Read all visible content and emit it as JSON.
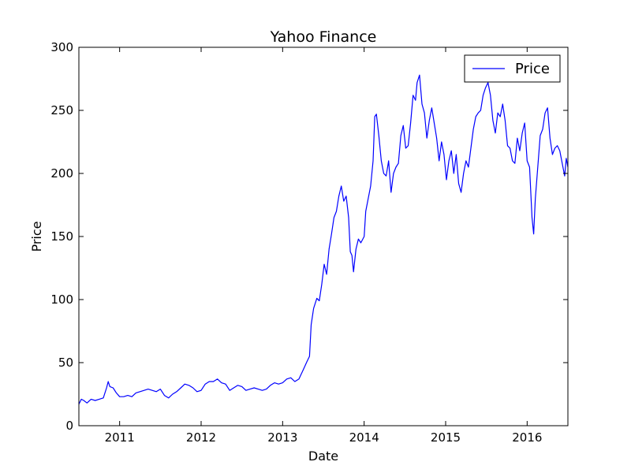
{
  "chart_data": {
    "type": "line",
    "title": "Yahoo Finance",
    "xlabel": "Date",
    "ylabel": "Price",
    "xlim": [
      2010.5,
      2016.5
    ],
    "ylim": [
      0,
      300
    ],
    "x_ticks": [
      2011,
      2012,
      2013,
      2014,
      2015,
      2016
    ],
    "x_tick_labels": [
      "2011",
      "2012",
      "2013",
      "2014",
      "2015",
      "2016"
    ],
    "y_ticks": [
      0,
      50,
      100,
      150,
      200,
      250,
      300
    ],
    "y_tick_labels": [
      "0",
      "50",
      "100",
      "150",
      "200",
      "250",
      "300"
    ],
    "grid": false,
    "legend_position": "top-right",
    "series": [
      {
        "name": "Price",
        "color": "#0000ff",
        "points": [
          [
            2010.5,
            17
          ],
          [
            2010.53,
            21
          ],
          [
            2010.56,
            20
          ],
          [
            2010.6,
            18
          ],
          [
            2010.65,
            21
          ],
          [
            2010.7,
            20
          ],
          [
            2010.75,
            21
          ],
          [
            2010.8,
            22
          ],
          [
            2010.84,
            30
          ],
          [
            2010.86,
            35
          ],
          [
            2010.88,
            31
          ],
          [
            2010.92,
            30
          ],
          [
            2010.96,
            26
          ],
          [
            2011.0,
            23
          ],
          [
            2011.05,
            23
          ],
          [
            2011.1,
            24
          ],
          [
            2011.15,
            23
          ],
          [
            2011.2,
            26
          ],
          [
            2011.25,
            27
          ],
          [
            2011.3,
            28
          ],
          [
            2011.35,
            29
          ],
          [
            2011.4,
            28
          ],
          [
            2011.45,
            27
          ],
          [
            2011.5,
            29
          ],
          [
            2011.55,
            24
          ],
          [
            2011.6,
            22
          ],
          [
            2011.65,
            25
          ],
          [
            2011.7,
            27
          ],
          [
            2011.75,
            30
          ],
          [
            2011.8,
            33
          ],
          [
            2011.85,
            32
          ],
          [
            2011.9,
            30
          ],
          [
            2011.95,
            27
          ],
          [
            2012.0,
            28
          ],
          [
            2012.05,
            33
          ],
          [
            2012.1,
            35
          ],
          [
            2012.15,
            35
          ],
          [
            2012.2,
            37
          ],
          [
            2012.25,
            34
          ],
          [
            2012.3,
            33
          ],
          [
            2012.35,
            28
          ],
          [
            2012.4,
            30
          ],
          [
            2012.45,
            32
          ],
          [
            2012.5,
            31
          ],
          [
            2012.55,
            28
          ],
          [
            2012.6,
            29
          ],
          [
            2012.65,
            30
          ],
          [
            2012.7,
            29
          ],
          [
            2012.75,
            28
          ],
          [
            2012.8,
            29
          ],
          [
            2012.85,
            32
          ],
          [
            2012.9,
            34
          ],
          [
            2012.95,
            33
          ],
          [
            2013.0,
            34
          ],
          [
            2013.05,
            37
          ],
          [
            2013.1,
            38
          ],
          [
            2013.15,
            35
          ],
          [
            2013.2,
            37
          ],
          [
            2013.25,
            44
          ],
          [
            2013.3,
            51
          ],
          [
            2013.33,
            55
          ],
          [
            2013.35,
            80
          ],
          [
            2013.38,
            93
          ],
          [
            2013.42,
            101
          ],
          [
            2013.45,
            99
          ],
          [
            2013.48,
            112
          ],
          [
            2013.51,
            128
          ],
          [
            2013.54,
            120
          ],
          [
            2013.57,
            140
          ],
          [
            2013.6,
            152
          ],
          [
            2013.63,
            165
          ],
          [
            2013.66,
            170
          ],
          [
            2013.69,
            182
          ],
          [
            2013.72,
            190
          ],
          [
            2013.75,
            178
          ],
          [
            2013.78,
            182
          ],
          [
            2013.81,
            165
          ],
          [
            2013.83,
            138
          ],
          [
            2013.85,
            135
          ],
          [
            2013.87,
            122
          ],
          [
            2013.9,
            140
          ],
          [
            2013.93,
            148
          ],
          [
            2013.96,
            145
          ],
          [
            2014.0,
            150
          ],
          [
            2014.02,
            170
          ],
          [
            2014.05,
            180
          ],
          [
            2014.08,
            190
          ],
          [
            2014.11,
            210
          ],
          [
            2014.13,
            245
          ],
          [
            2014.15,
            247
          ],
          [
            2014.18,
            230
          ],
          [
            2014.21,
            210
          ],
          [
            2014.24,
            200
          ],
          [
            2014.27,
            198
          ],
          [
            2014.3,
            210
          ],
          [
            2014.33,
            185
          ],
          [
            2014.36,
            200
          ],
          [
            2014.39,
            205
          ],
          [
            2014.42,
            208
          ],
          [
            2014.45,
            230
          ],
          [
            2014.48,
            238
          ],
          [
            2014.51,
            220
          ],
          [
            2014.54,
            222
          ],
          [
            2014.57,
            240
          ],
          [
            2014.6,
            262
          ],
          [
            2014.63,
            258
          ],
          [
            2014.65,
            272
          ],
          [
            2014.68,
            278
          ],
          [
            2014.71,
            255
          ],
          [
            2014.74,
            248
          ],
          [
            2014.77,
            228
          ],
          [
            2014.8,
            242
          ],
          [
            2014.83,
            252
          ],
          [
            2014.86,
            240
          ],
          [
            2014.89,
            228
          ],
          [
            2014.92,
            210
          ],
          [
            2014.95,
            225
          ],
          [
            2014.98,
            215
          ],
          [
            2015.01,
            195
          ],
          [
            2015.04,
            210
          ],
          [
            2015.07,
            218
          ],
          [
            2015.1,
            200
          ],
          [
            2015.13,
            215
          ],
          [
            2015.16,
            192
          ],
          [
            2015.19,
            185
          ],
          [
            2015.22,
            200
          ],
          [
            2015.25,
            210
          ],
          [
            2015.28,
            205
          ],
          [
            2015.31,
            220
          ],
          [
            2015.34,
            235
          ],
          [
            2015.37,
            245
          ],
          [
            2015.4,
            248
          ],
          [
            2015.43,
            250
          ],
          [
            2015.46,
            262
          ],
          [
            2015.49,
            268
          ],
          [
            2015.52,
            272
          ],
          [
            2015.55,
            262
          ],
          [
            2015.58,
            242
          ],
          [
            2015.61,
            232
          ],
          [
            2015.64,
            248
          ],
          [
            2015.67,
            245
          ],
          [
            2015.7,
            255
          ],
          [
            2015.73,
            242
          ],
          [
            2015.76,
            222
          ],
          [
            2015.79,
            220
          ],
          [
            2015.82,
            210
          ],
          [
            2015.85,
            208
          ],
          [
            2015.88,
            228
          ],
          [
            2015.91,
            218
          ],
          [
            2015.94,
            232
          ],
          [
            2015.97,
            240
          ],
          [
            2016.0,
            210
          ],
          [
            2016.03,
            205
          ],
          [
            2016.06,
            165
          ],
          [
            2016.08,
            152
          ],
          [
            2016.1,
            180
          ],
          [
            2016.13,
            205
          ],
          [
            2016.16,
            230
          ],
          [
            2016.19,
            235
          ],
          [
            2016.22,
            248
          ],
          [
            2016.25,
            252
          ],
          [
            2016.28,
            228
          ],
          [
            2016.31,
            215
          ],
          [
            2016.34,
            220
          ],
          [
            2016.37,
            222
          ],
          [
            2016.4,
            218
          ],
          [
            2016.43,
            208
          ],
          [
            2016.46,
            198
          ],
          [
            2016.48,
            212
          ],
          [
            2016.5,
            205
          ]
        ]
      }
    ]
  }
}
